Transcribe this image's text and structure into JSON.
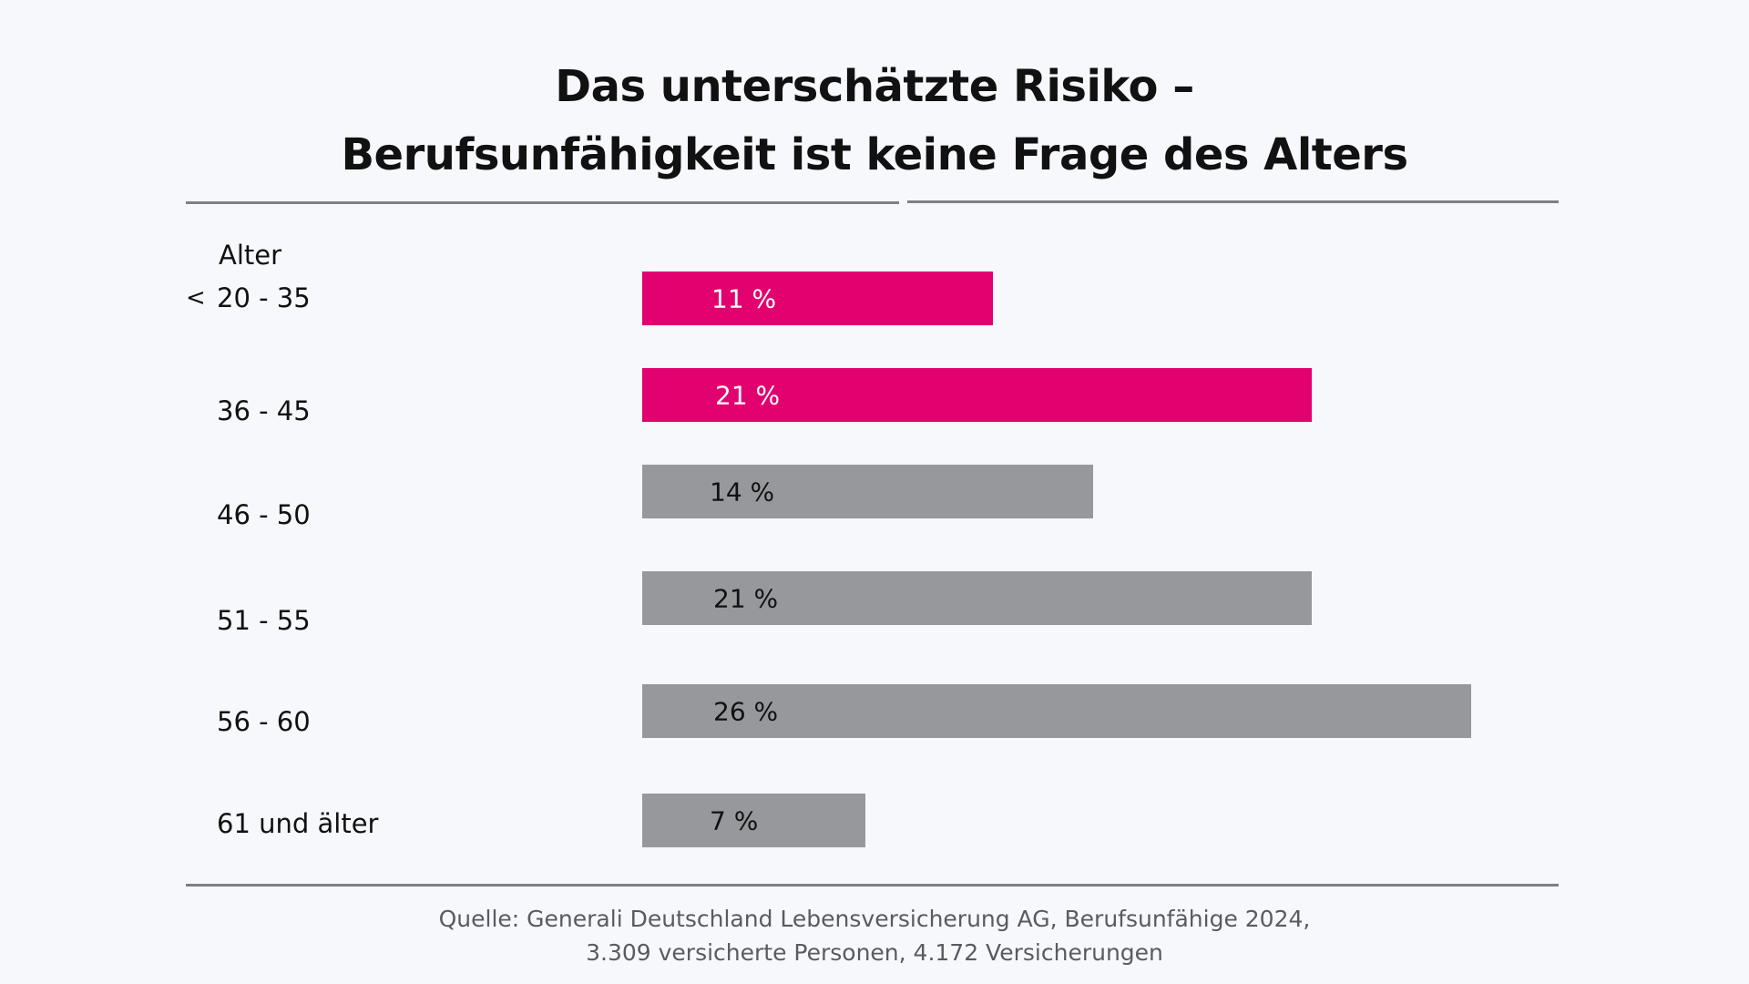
{
  "title": {
    "line1": "Das unterschätzte Risiko –",
    "line2": "Berufsunfähigkeit ist keine Frage des Alters"
  },
  "colors": {
    "highlight": "#e2026f",
    "neutral": "#97989c",
    "rule": "#7f8084",
    "background": "#f7f8fc"
  },
  "chart_data": {
    "type": "bar",
    "orientation": "horizontal",
    "axis_label": "Alter",
    "categories": [
      "20 - 35",
      "36 - 45",
      "46 - 50",
      "51 - 55",
      "56 - 60",
      "61 und älter"
    ],
    "values": [
      11,
      21,
      14,
      21,
      26,
      7
    ],
    "value_labels": [
      "11 %",
      "21 %",
      "14 %",
      "21 %",
      "26 %",
      "7 %"
    ],
    "highlighted": [
      true,
      true,
      false,
      false,
      false,
      false
    ],
    "marker": "<",
    "marker_category": "20 - 35",
    "unit": "%",
    "grid": false,
    "legend": "none"
  },
  "source": {
    "line1": "Quelle: Generali Deutschland Lebensversicherung AG, Berufsunfähige 2024,",
    "line2": "3.309 versicherte Personen, 4.172 Versicherungen"
  }
}
